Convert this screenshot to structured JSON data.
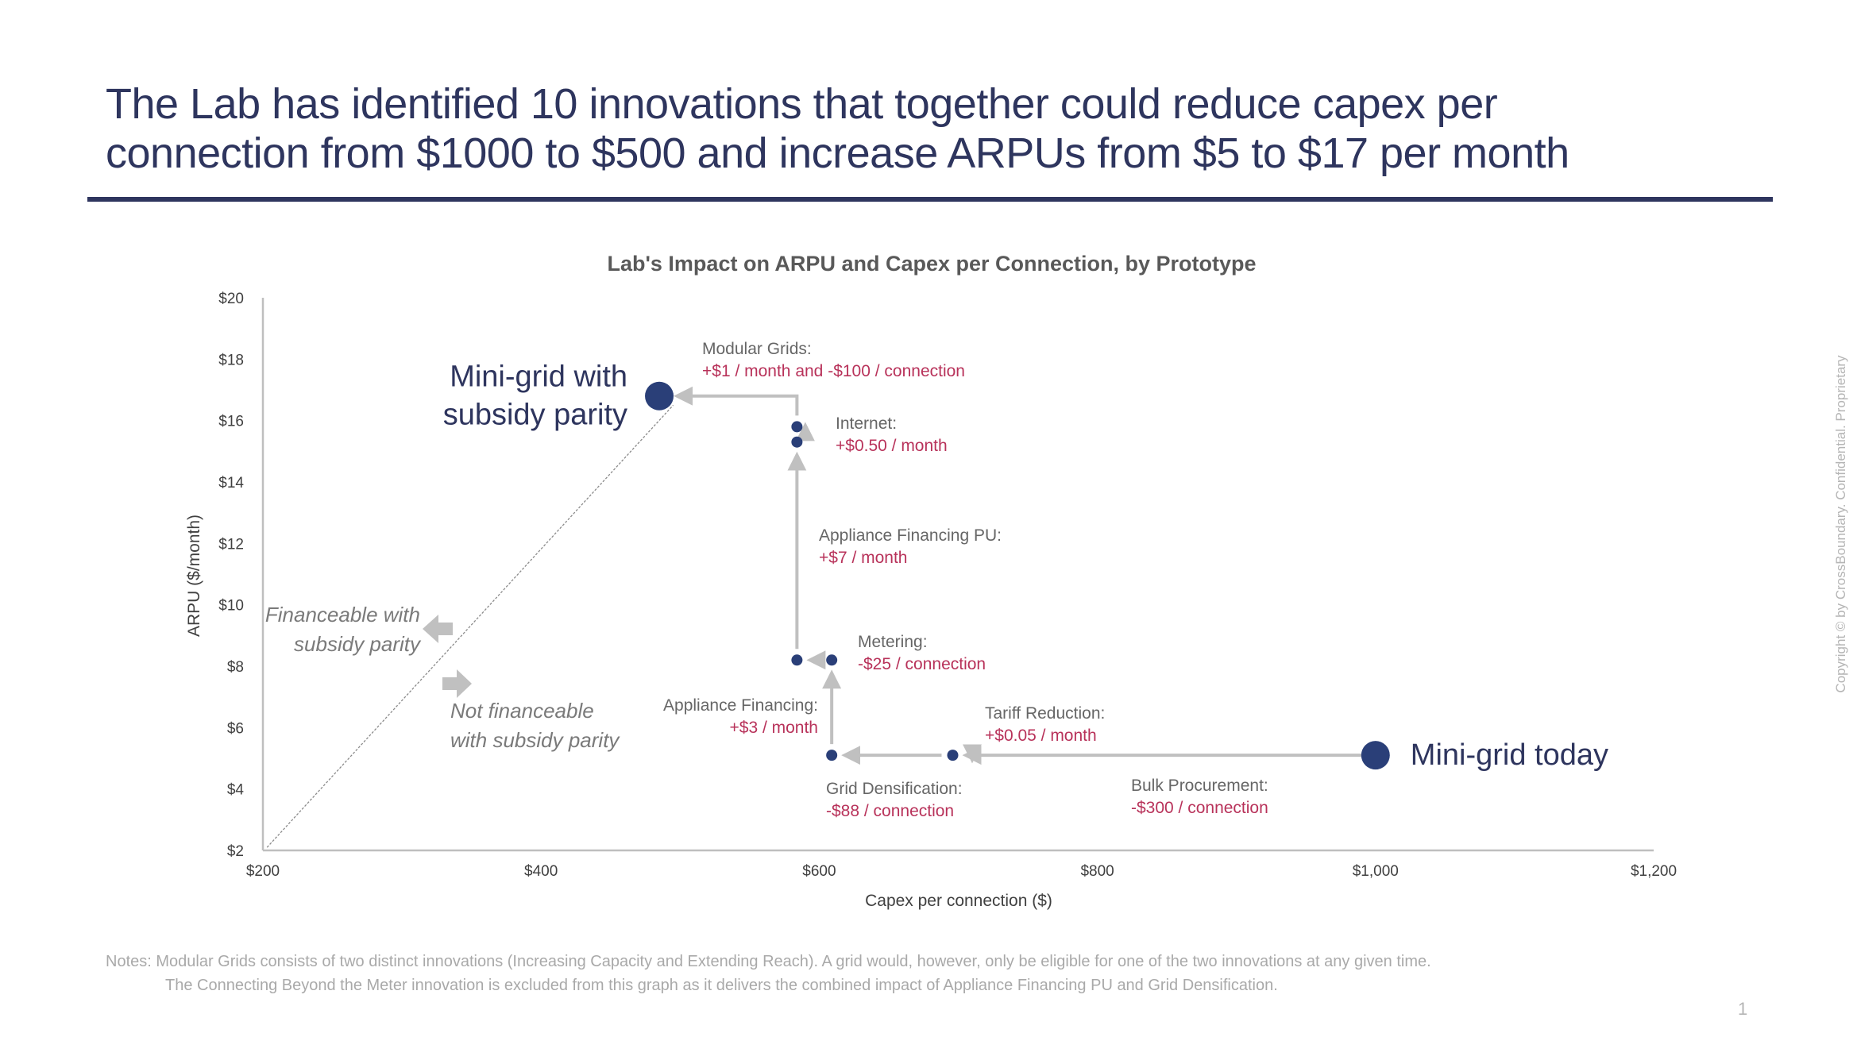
{
  "slide": {
    "title_lines": [
      "The Lab has identified 10 innovations that together could reduce capex per",
      "connection from $1000 to $500 and increase ARPUs from $5 to $17 per month"
    ],
    "notes": [
      "Notes: Modular Grids consists of two distinct innovations (Increasing Capacity and Extending Reach). A grid would, however, only be eligible for one of the two innovations at any given time.",
      "The Connecting Beyond the Meter innovation is excluded from this graph as it delivers the combined impact of Appliance Financing PU and Grid Densification."
    ],
    "copyright": "Copyright © by CrossBoundary. Confidential. Proprietary",
    "page_number": "1"
  },
  "colors": {
    "title": "#2e355e",
    "point": "#2a3f78",
    "arrow": "#c0c0c0",
    "axis": "#bfbfbf",
    "label_gray": "#666666",
    "label_red": "#b8325a",
    "region_text": "#7a7a7a"
  },
  "chart_data": {
    "type": "scatter",
    "title": "Lab's Impact on ARPU and Capex per Connection, by Prototype",
    "xlabel": "Capex per connection ($)",
    "ylabel": "ARPU ($/month)",
    "xlim": [
      200,
      1200
    ],
    "ylim": [
      2,
      20
    ],
    "x_ticks": [
      200,
      400,
      600,
      800,
      1000,
      1200
    ],
    "x_tick_labels": [
      "$200",
      "$400",
      "$600",
      "$800",
      "$1,000",
      "$1,200"
    ],
    "y_ticks": [
      2,
      4,
      6,
      8,
      10,
      12,
      14,
      16,
      18,
      20
    ],
    "y_tick_labels": [
      "$2",
      "$4",
      "$6",
      "$8",
      "$10",
      "$12",
      "$14",
      "$16",
      "$18",
      "$20"
    ],
    "grid": false,
    "points": [
      {
        "id": "mini-grid-today",
        "x": 1000,
        "y": 5.1,
        "size": "large",
        "label": "Mini-grid today"
      },
      {
        "id": "after-bulk-procurement",
        "x": 696,
        "y": 5.1,
        "size": "small"
      },
      {
        "id": "after-grid-densification",
        "x": 609,
        "y": 5.1,
        "size": "small"
      },
      {
        "id": "after-appliance-financing",
        "x": 609,
        "y": 8.2,
        "size": "small"
      },
      {
        "id": "after-metering",
        "x": 584,
        "y": 8.2,
        "size": "small"
      },
      {
        "id": "after-appliance-financing-pu",
        "x": 584,
        "y": 15.3,
        "size": "small"
      },
      {
        "id": "after-internet",
        "x": 584,
        "y": 15.8,
        "size": "small"
      },
      {
        "id": "mini-grid-subsidy-parity",
        "x": 485,
        "y": 16.8,
        "size": "large",
        "label": "Mini-grid with subsidy parity"
      }
    ],
    "steps": [
      {
        "name": "Bulk Procurement:",
        "impact": "-$300 / connection",
        "from": [
          1000,
          5.1
        ],
        "to": [
          696,
          5.1
        ]
      },
      {
        "name": "Tariff Reduction:",
        "impact": "+$0.05 / month",
        "from": [
          710,
          5.15
        ],
        "to": [
          710,
          5.3
        ]
      },
      {
        "name": "Grid Densification:",
        "impact": "-$88 / connection",
        "from": [
          696,
          5.1
        ],
        "to": [
          609,
          5.1
        ]
      },
      {
        "name": "Appliance Financing:",
        "impact": "+$3 / month",
        "from": [
          609,
          5.1
        ],
        "to": [
          609,
          8.2
        ]
      },
      {
        "name": "Metering:",
        "impact": "-$25 / connection",
        "from": [
          609,
          8.2
        ],
        "to": [
          584,
          8.2
        ]
      },
      {
        "name": "Appliance Financing PU:",
        "impact": "+$7 / month",
        "from": [
          584,
          8.2
        ],
        "to": [
          584,
          15.3
        ]
      },
      {
        "name": "Internet:",
        "impact": "+$0.50 / month",
        "from": [
          590,
          15.3
        ],
        "to": [
          590,
          15.8
        ]
      },
      {
        "name": "Modular Grids:",
        "impact": "+$1 / month and -$100 / connection",
        "from": [
          584,
          15.8
        ],
        "to": [
          485,
          16.8
        ]
      }
    ],
    "parity_line": {
      "from": [
        203,
        2.1
      ],
      "to": [
        495,
        16.5
      ],
      "style": "dashed"
    },
    "annotations": [
      {
        "id": "financeable",
        "lines": [
          "Financeable with",
          "subsidy parity"
        ],
        "arrow": "left"
      },
      {
        "id": "not-financeable",
        "lines": [
          "Not financeable",
          "with subsidy parity"
        ],
        "arrow": "right"
      }
    ]
  }
}
